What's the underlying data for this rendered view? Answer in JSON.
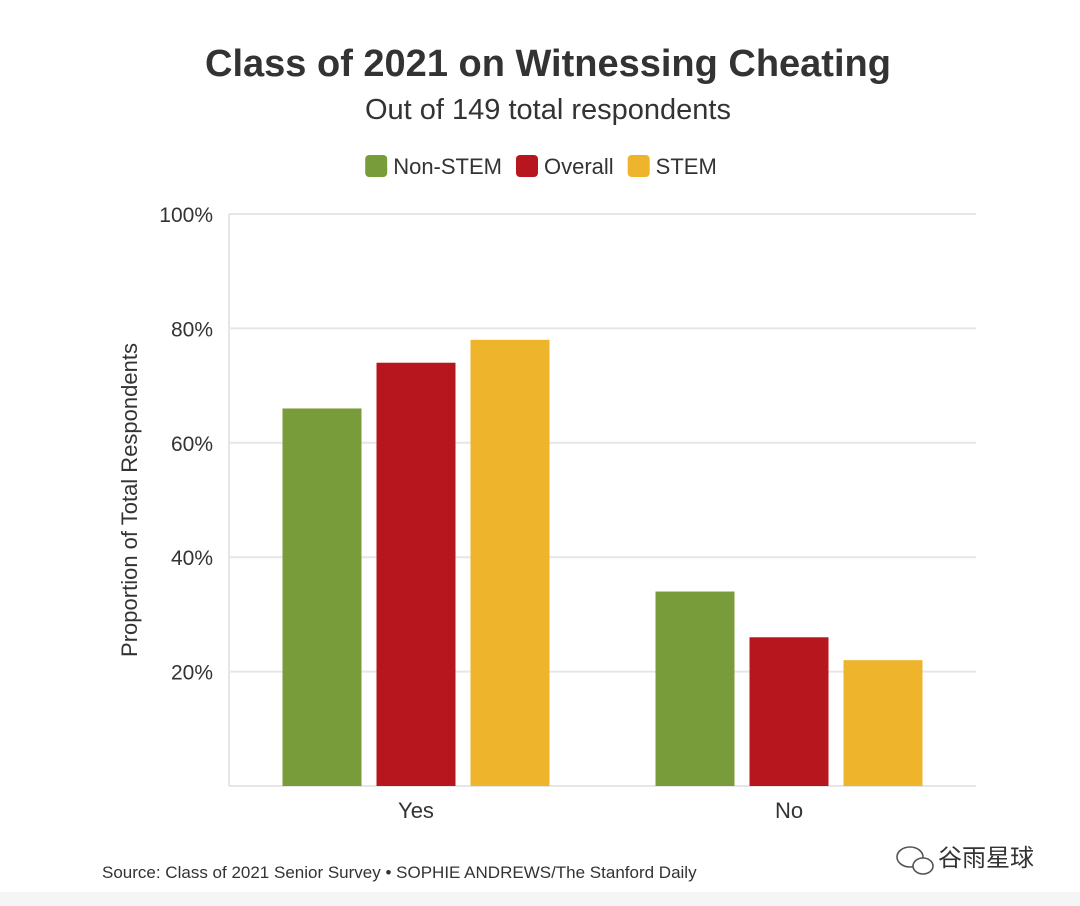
{
  "chart_data": {
    "type": "bar",
    "title": "Class of 2021 on Witnessing Cheating",
    "subtitle": "Out of 149 total respondents",
    "categories": [
      "Yes",
      "No"
    ],
    "series": [
      {
        "name": "Non-STEM",
        "color": "#789c3a",
        "values": [
          66,
          34
        ]
      },
      {
        "name": "Overall",
        "color": "#b8161f",
        "values": [
          74,
          26
        ]
      },
      {
        "name": "STEM",
        "color": "#edb42c",
        "values": [
          78,
          22
        ]
      }
    ],
    "ylabel": "Proportion of Total Respondents",
    "xlabel": "",
    "ylim": [
      0,
      100
    ],
    "yticks": [
      20,
      40,
      60,
      80,
      100
    ],
    "ytick_labels": [
      "20%",
      "40%",
      "60%",
      "80%",
      "100%"
    ],
    "grid": true,
    "legend": "top-center"
  },
  "source": "Source: Class of 2021 Senior Survey • SOPHIE ANDREWS/The Stanford Daily",
  "watermark": "谷雨星球",
  "colors": {
    "grid": "#e6e6e6",
    "text": "#333333"
  }
}
